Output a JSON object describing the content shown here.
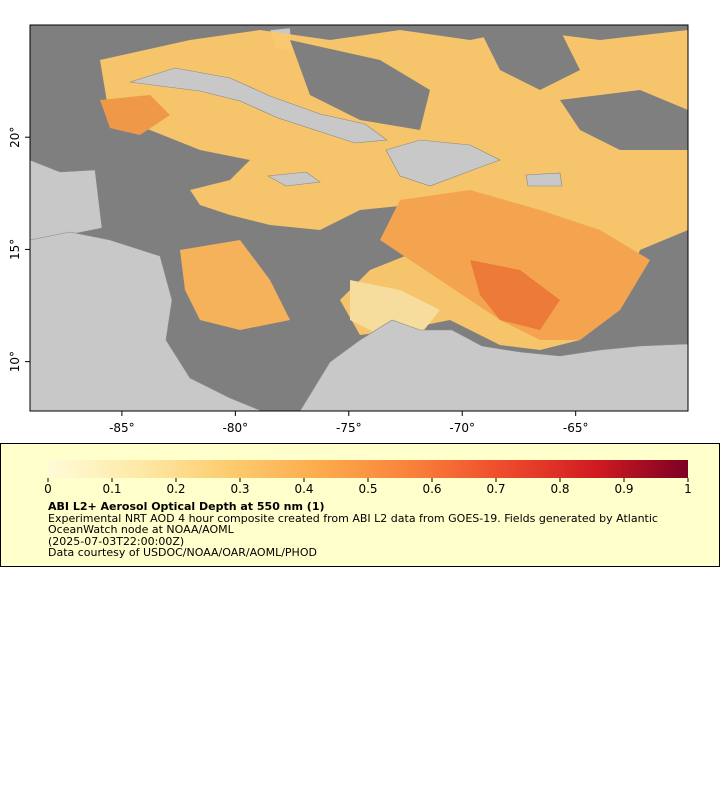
{
  "chart_data": {
    "type": "map",
    "xlim": [
      -89.05,
      -60.05
    ],
    "ylim": [
      7.8,
      25
    ],
    "xticks": [
      {
        "value": -85,
        "label": "-85°"
      },
      {
        "value": -80,
        "label": "-80°"
      },
      {
        "value": -75,
        "label": "-75°"
      },
      {
        "value": -70,
        "label": "-70°"
      },
      {
        "value": -65,
        "label": "-65°"
      }
    ],
    "yticks": [
      {
        "value": 10,
        "label": "10°"
      },
      {
        "value": 15,
        "label": "15°"
      },
      {
        "value": 20,
        "label": "20°"
      }
    ],
    "colorbar": {
      "range": [
        0,
        1
      ],
      "ticks": [
        0,
        0.1,
        0.2,
        0.3,
        0.4,
        0.5,
        0.6,
        0.7,
        0.8,
        0.9,
        1
      ],
      "colors": [
        "#fffbd8",
        "#fee9a6",
        "#fdcb6e",
        "#fcaa4c",
        "#f9803a",
        "#ee4a2c",
        "#d01a22",
        "#7c0023"
      ]
    },
    "title": "ABI L2+ Aerosol Optical Depth at 550 nm (1)",
    "description": "Experimental NRT AOD 4 hour composite created from ABI L2 data from GOES-19. Fields generated by Atlantic",
    "description_cont": "OceanWatch node at NOAA/AOML",
    "time": "(2025-07-03T22:00:00Z)",
    "credit": "Data courtesy of USDOC/NOAA/OAR/AOML/PHOD"
  }
}
